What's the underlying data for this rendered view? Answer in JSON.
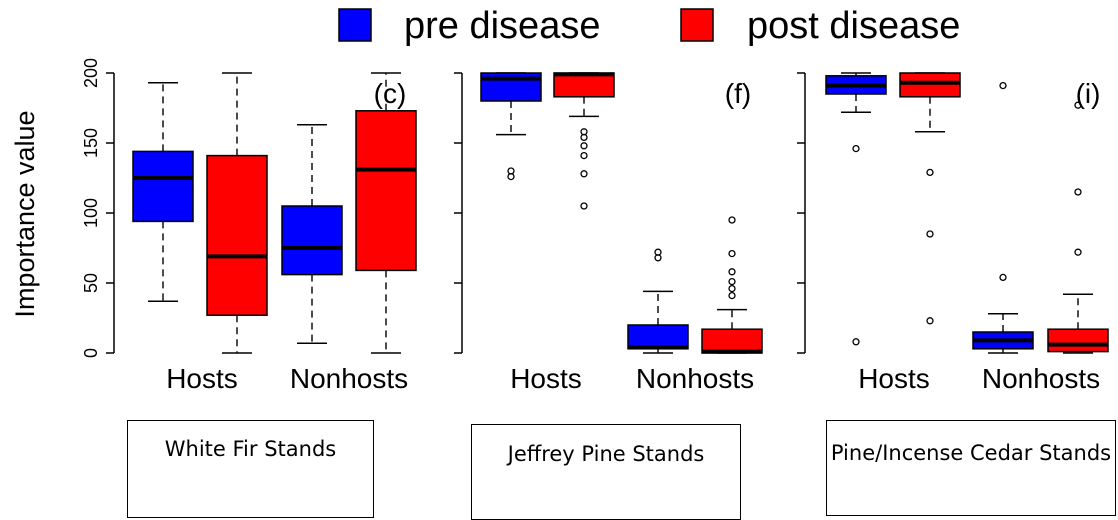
{
  "legend": {
    "items": [
      {
        "label": "pre disease",
        "color": "#0000ff"
      },
      {
        "label": "post disease",
        "color": "#ff0000"
      }
    ]
  },
  "captions": [
    "White Fir Stands",
    "Jeffrey Pine Stands",
    "Pine/Incense Cedar Stands"
  ],
  "chart_data": [
    {
      "type": "boxplot",
      "panel_label": "(c)",
      "ylabel": "Importance value",
      "ylim": [
        0,
        200
      ],
      "yticks": [
        0,
        50,
        100,
        150,
        200
      ],
      "categories": [
        "Hosts",
        "Nonhosts"
      ],
      "series": [
        {
          "name": "pre disease",
          "color": "#0000ff",
          "boxes": [
            {
              "category": "Hosts",
              "min": 37,
              "q1": 94,
              "median": 125,
              "q3": 144,
              "max": 193,
              "outliers": []
            },
            {
              "category": "Nonhosts",
              "min": 7,
              "q1": 56,
              "median": 75,
              "q3": 105,
              "max": 163,
              "outliers": []
            }
          ]
        },
        {
          "name": "post disease",
          "color": "#ff0000",
          "boxes": [
            {
              "category": "Hosts",
              "min": 0,
              "q1": 27,
              "median": 69,
              "q3": 141,
              "max": 200,
              "outliers": []
            },
            {
              "category": "Nonhosts",
              "min": 0,
              "q1": 59,
              "median": 131,
              "q3": 173,
              "max": 200,
              "outliers": []
            }
          ]
        }
      ]
    },
    {
      "type": "boxplot",
      "panel_label": "(f)",
      "ylim": [
        0,
        200
      ],
      "yticks": [
        0,
        50,
        100,
        150,
        200
      ],
      "categories": [
        "Hosts",
        "Nonhosts"
      ],
      "series": [
        {
          "name": "pre disease",
          "color": "#0000ff",
          "boxes": [
            {
              "category": "Hosts",
              "min": 156,
              "q1": 180,
              "median": 196,
              "q3": 200,
              "max": 200,
              "outliers": [
                126,
                130
              ]
            },
            {
              "category": "Nonhosts",
              "min": 0,
              "q1": 3,
              "median": 4,
              "q3": 20,
              "max": 44,
              "outliers": [
                68,
                72
              ]
            }
          ]
        },
        {
          "name": "post disease",
          "color": "#ff0000",
          "boxes": [
            {
              "category": "Hosts",
              "min": 169,
              "q1": 183,
              "median": 199,
              "q3": 200,
              "max": 200,
              "outliers": [
                105,
                128,
                141,
                148,
                154,
                158
              ]
            },
            {
              "category": "Nonhosts",
              "min": 0,
              "q1": 0,
              "median": 1,
              "q3": 17,
              "max": 31,
              "outliers": [
                41,
                46,
                51,
                58,
                71,
                95
              ]
            }
          ]
        }
      ]
    },
    {
      "type": "boxplot",
      "panel_label": "(i)",
      "ylim": [
        0,
        200
      ],
      "yticks": [
        0,
        50,
        100,
        150,
        200
      ],
      "categories": [
        "Hosts",
        "Nonhosts"
      ],
      "series": [
        {
          "name": "pre disease",
          "color": "#0000ff",
          "boxes": [
            {
              "category": "Hosts",
              "min": 172,
              "q1": 185,
              "median": 191,
              "q3": 198,
              "max": 200,
              "outliers": [
                8,
                146
              ]
            },
            {
              "category": "Nonhosts",
              "min": 0,
              "q1": 3,
              "median": 9,
              "q3": 15,
              "max": 28,
              "outliers": [
                54,
                191
              ]
            }
          ]
        },
        {
          "name": "post disease",
          "color": "#ff0000",
          "boxes": [
            {
              "category": "Hosts",
              "min": 158,
              "q1": 183,
              "median": 193,
              "q3": 200,
              "max": 200,
              "outliers": [
                23,
                85,
                129
              ]
            },
            {
              "category": "Nonhosts",
              "min": 0,
              "q1": 1,
              "median": 6,
              "q3": 17,
              "max": 42,
              "outliers": [
                72,
                115,
                177
              ]
            }
          ]
        }
      ]
    }
  ]
}
